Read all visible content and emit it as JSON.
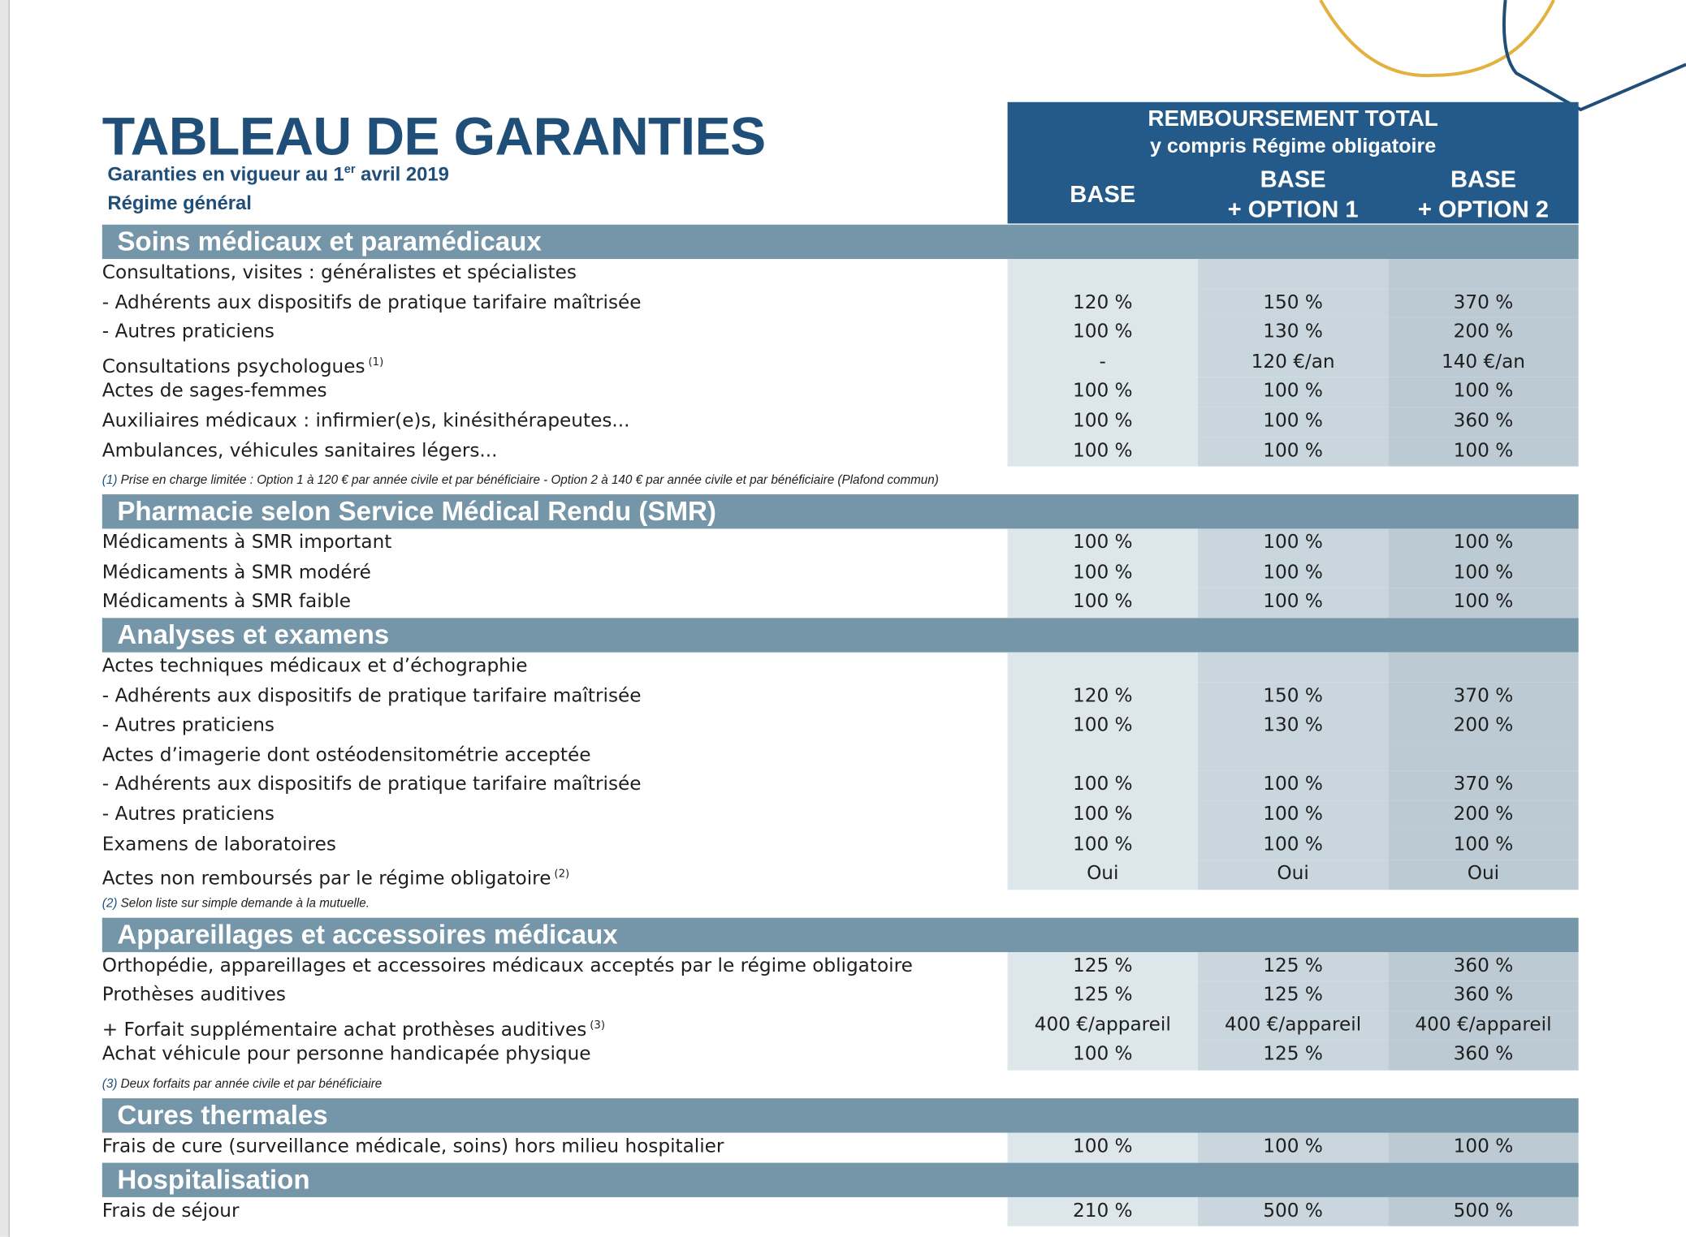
{
  "header": {
    "title": "TABLEAU DE GARANTIES",
    "subtitle": {
      "before": "Garanties en vigueur au 1",
      "sup": "er",
      "after": " avril 2019"
    },
    "regime": "Régime général"
  },
  "columns_header": {
    "line1": "REMBOURSEMENT TOTAL",
    "line2": "y compris Régime obligatoire",
    "columns": [
      [
        "BASE"
      ],
      [
        "BASE",
        "+ OPTION 1"
      ],
      [
        "BASE",
        "+ OPTION 2"
      ]
    ]
  },
  "sections": [
    {
      "title": "Soins médicaux et paramédicaux",
      "rows": [
        {
          "label": "Consultations, visites : généralistes et spécialistes"
        },
        {
          "label": "- Adhérents aux dispositifs de pratique tarifaire maîtrisée",
          "values": [
            "120 %",
            "150 %",
            "370 %"
          ]
        },
        {
          "label": "- Autres praticiens",
          "values": [
            "100 %",
            "130 %",
            "200 %"
          ]
        },
        {
          "label": "Consultations psychologues",
          "sup": "(1)",
          "values": [
            "-",
            "120 €/an",
            "140 €/an"
          ]
        },
        {
          "label": "Actes de sages-femmes",
          "values": [
            "100 %",
            "100 %",
            "100 %"
          ]
        },
        {
          "label": "Auxiliaires médicaux : infirmier(e)s, kinésithérapeutes...",
          "values": [
            "100 %",
            "100 %",
            "360 %"
          ]
        },
        {
          "label": "Ambulances, véhicules sanitaires légers...",
          "values": [
            "100 %",
            "100 %",
            "100 %"
          ]
        }
      ],
      "note": {
        "marker": "(1)",
        "text": " Prise en charge limitée : Option 1 à 120 € par année  civile et par bénéficiaire  - Option 2 à 140 € par année  civile et par bénéficiaire (Plafond commun)"
      }
    },
    {
      "title": "Pharmacie selon Service Médical Rendu (SMR)",
      "rows": [
        {
          "label": "Médicaments à SMR important",
          "values": [
            "100 %",
            "100 %",
            "100 %"
          ]
        },
        {
          "label": "Médicaments à SMR modéré",
          "values": [
            "100 %",
            "100 %",
            "100 %"
          ]
        },
        {
          "label": "Médicaments à SMR faible",
          "values": [
            "100 %",
            "100 %",
            "100 %"
          ]
        }
      ]
    },
    {
      "title": "Analyses et examens",
      "rows": [
        {
          "label": "Actes techniques médicaux et d’échographie"
        },
        {
          "label": "- Adhérents aux dispositifs de pratique tarifaire maîtrisée",
          "values": [
            "120 %",
            "150 %",
            "370 %"
          ]
        },
        {
          "label": "- Autres praticiens",
          "values": [
            "100 %",
            "130 %",
            "200 %"
          ]
        },
        {
          "label": "Actes d’imagerie dont ostéodensitométrie acceptée"
        },
        {
          "label": "- Adhérents aux dispositifs de pratique tarifaire maîtrisée",
          "values": [
            "100 %",
            "100 %",
            "370 %"
          ]
        },
        {
          "label": "- Autres praticiens",
          "values": [
            "100 %",
            "100 %",
            "200 %"
          ]
        },
        {
          "label": "Examens de laboratoires",
          "values": [
            "100 %",
            "100 %",
            "100 %"
          ]
        },
        {
          "label": "Actes non remboursés par le régime obligatoire",
          "sup": "(2)",
          "values": [
            "Oui",
            "Oui",
            "Oui"
          ]
        }
      ],
      "note": {
        "marker": "(2)",
        "text": " Selon liste sur simple demande à la mutuelle."
      }
    },
    {
      "title": "Appareillages et accessoires médicaux",
      "rows": [
        {
          "label": "Orthopédie, appareillages et accessoires médicaux acceptés par le régime obligatoire",
          "values": [
            "125 %",
            "125 %",
            "360 %"
          ]
        },
        {
          "label": "Prothèses auditives",
          "values": [
            "125 %",
            "125 %",
            "360 %"
          ]
        },
        {
          "label": "+ Forfait supplémentaire achat prothèses auditives",
          "sup": "(3)",
          "values": [
            "400 €/appareil",
            "400 €/appareil",
            "400 €/appareil"
          ]
        },
        {
          "label": "Achat véhicule pour personne handicapée physique",
          "values": [
            "100 %",
            "125 %",
            "360 %"
          ]
        }
      ],
      "note": {
        "marker": "(3)",
        "text": " Deux forfaits par année civile et par bénéficiaire"
      }
    },
    {
      "title": "Cures thermales",
      "rows": [
        {
          "label": "Frais de cure (surveillance médicale, soins) hors milieu hospitalier",
          "values": [
            "100 %",
            "100 %",
            "100 %"
          ]
        }
      ]
    },
    {
      "title": "Hospitalisation",
      "rows": [
        {
          "label": "Frais de séjour",
          "values": [
            "210 %",
            "500 %",
            "500 %"
          ]
        }
      ]
    }
  ]
}
